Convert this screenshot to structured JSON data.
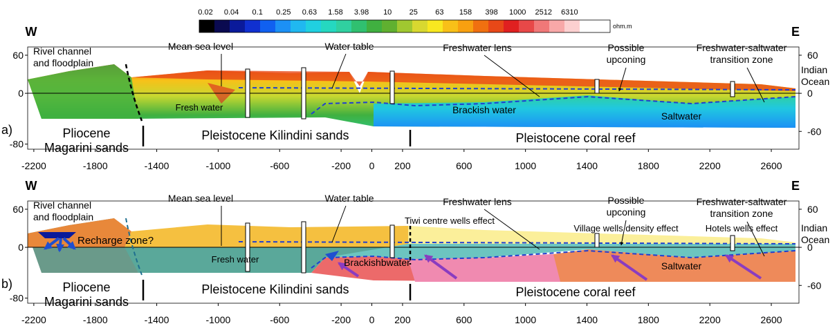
{
  "colorbar": {
    "ticks": [
      0.02,
      0.04,
      0.1,
      0.25,
      0.63,
      1.58,
      3.98,
      10,
      25,
      63,
      158,
      398,
      1000,
      2512,
      6310
    ],
    "unit": "ohm.m",
    "colors": [
      "#000000",
      "#0a0a50",
      "#0a1a9a",
      "#1030d0",
      "#1060f0",
      "#1c90f5",
      "#20b8f0",
      "#20d0e0",
      "#25d8c0",
      "#30d0a0",
      "#30c070",
      "#40b040",
      "#60b030",
      "#a0c830",
      "#d8d830",
      "#f8e820",
      "#f8c018",
      "#f8a010",
      "#f07010",
      "#e84818",
      "#e02020",
      "#e84848",
      "#f07878",
      "#f8a8a8",
      "#fcd0d0",
      "#ffffff",
      "#ffffff"
    ]
  },
  "panels": [
    {
      "label": "a)",
      "west": "W",
      "east": "E",
      "xlim": [
        -2240,
        2780
      ],
      "ylim": [
        -88,
        73
      ],
      "xticks": [
        -2200,
        -1800,
        -1400,
        -1000,
        -600,
        -200,
        0,
        200,
        600,
        1000,
        1400,
        1800,
        2200,
        2600
      ],
      "yticks_left": [
        60,
        0,
        -80
      ],
      "yticks_right": [
        60,
        0,
        -60
      ],
      "annotations": [
        {
          "lines": [
            "Rivel channel",
            "and floodplain"
          ]
        },
        {
          "lines": [
            "Mean sea level"
          ]
        },
        {
          "lines": [
            "Water table"
          ]
        },
        {
          "lines": [
            "Freshwater lens"
          ]
        },
        {
          "lines": [
            "Possible",
            "upconing"
          ]
        },
        {
          "lines": [
            "Freshwater-saltwater",
            "transition zone"
          ]
        },
        {
          "lines": [
            "Indian",
            "Ocean"
          ]
        },
        {
          "lines": [
            "Fresh water"
          ]
        },
        {
          "lines": [
            "Brackish water"
          ]
        },
        {
          "lines": [
            "Saltwater"
          ]
        },
        {
          "lines": [
            "Pliocene",
            "Magarini sands"
          ]
        },
        {
          "lines": [
            "Pleistocene Kilindini sands"
          ]
        },
        {
          "lines": [
            "Pleistocene coral reef"
          ]
        }
      ]
    },
    {
      "label": "b)",
      "west": "W",
      "east": "E",
      "xlim": [
        -2240,
        2780
      ],
      "ylim": [
        -88,
        73
      ],
      "xticks": [
        -2200,
        -1800,
        -1400,
        -1000,
        -600,
        -200,
        0,
        200,
        600,
        1000,
        1400,
        1800,
        2200,
        2600
      ],
      "yticks_left": [
        60,
        0,
        -80
      ],
      "yticks_right": [
        60,
        0,
        -60
      ],
      "annotations": [
        {
          "lines": [
            "Rivel channel",
            "and floodplain"
          ]
        },
        {
          "lines": [
            "Mean sea level"
          ]
        },
        {
          "lines": [
            "Water table"
          ]
        },
        {
          "lines": [
            "Freshwater lens"
          ]
        },
        {
          "lines": [
            "Possible",
            "upconing"
          ]
        },
        {
          "lines": [
            "Freshwater-saltwater",
            "transition zone"
          ]
        },
        {
          "lines": [
            "Indian",
            "Ocean"
          ]
        },
        {
          "lines": [
            "Fresh water"
          ]
        },
        {
          "lines": [
            "Brackishbwater"
          ]
        },
        {
          "lines": [
            "Saltwater"
          ]
        },
        {
          "lines": [
            "Pliocene",
            "Magarini sands"
          ]
        },
        {
          "lines": [
            "Pleistocene Kilindini sands"
          ]
        },
        {
          "lines": [
            "Pleistocene coral reef"
          ]
        },
        {
          "lines": [
            "Recharge zone?"
          ]
        },
        {
          "lines": [
            "Tiwi centre wells effect"
          ]
        },
        {
          "lines": [
            "Village wells density effect"
          ]
        },
        {
          "lines": [
            "Hotels wells effect"
          ]
        }
      ]
    }
  ]
}
